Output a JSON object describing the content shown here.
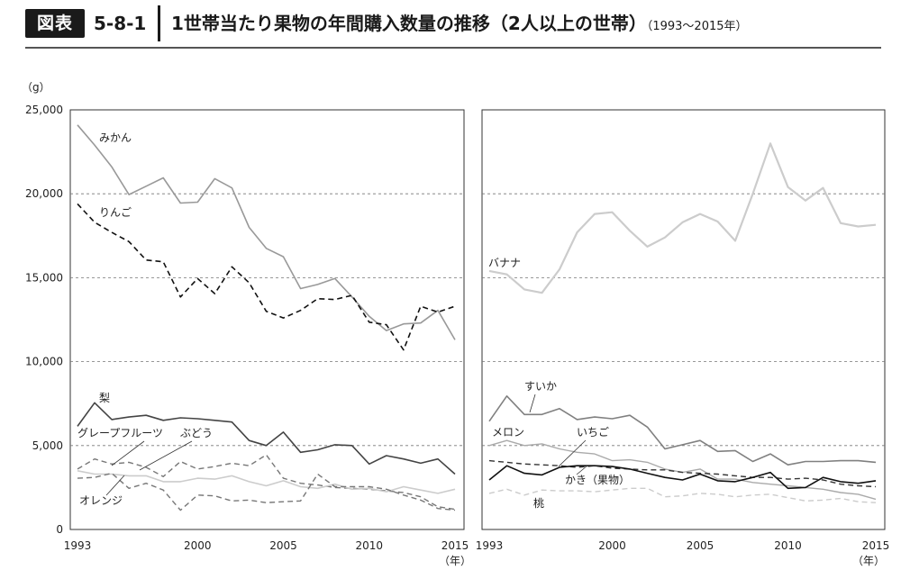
{
  "header": {
    "badge": "図表",
    "fig_number": "5-8-1",
    "title": "1世帯当たり果物の年間購入数量の推移（2人以上の世帯）",
    "subtitle": "（1993～2015年）"
  },
  "chart_data": {
    "type": "line",
    "unit_label": "（g）",
    "x_end_label": "（年）",
    "x": [
      1993,
      1994,
      1995,
      1996,
      1997,
      1998,
      1999,
      2000,
      2001,
      2002,
      2003,
      2004,
      2005,
      2006,
      2007,
      2008,
      2009,
      2010,
      2011,
      2012,
      2013,
      2014,
      2015
    ],
    "x_ticks": [
      1993,
      2000,
      2005,
      2010,
      2015
    ],
    "ylim": [
      0,
      25000
    ],
    "y_ticks": [
      0,
      5000,
      10000,
      15000,
      20000,
      25000
    ],
    "y_tick_labels": [
      "0",
      "5,000",
      "10,000",
      "15,000",
      "20,000",
      "25,000"
    ],
    "grid": "dashed at 5,000 intervals",
    "panels": [
      {
        "series": [
          {
            "name": "みかん",
            "color": "#999999",
            "dash": "solid",
            "width": 1.6,
            "values": [
              24100,
              22900,
              21600,
              19950,
              20450,
              20950,
              19450,
              19500,
              20900,
              20350,
              18000,
              16750,
              16250,
              14350,
              14600,
              14950,
              13850,
              12700,
              11850,
              12250,
              12300,
              13050,
              11300
            ]
          },
          {
            "name": "りんご",
            "color": "#111111",
            "dash": "dashed",
            "width": 1.6,
            "values": [
              19400,
              18300,
              17700,
              17150,
              16050,
              15950,
              13850,
              14950,
              14050,
              15650,
              14700,
              13000,
              12600,
              13050,
              13750,
              13700,
              13950,
              12350,
              12200,
              10700,
              13300,
              12950,
              13300
            ]
          },
          {
            "name": "梨",
            "color": "#444444",
            "dash": "solid",
            "width": 1.6,
            "values": [
              6150,
              7550,
              6550,
              6700,
              6800,
              6500,
              6650,
              6600,
              6500,
              6400,
              5300,
              5000,
              5800,
              4600,
              4750,
              5050,
              5000,
              3900,
              4400,
              4200,
              3950,
              4200,
              3300
            ]
          },
          {
            "name": "グレープフルーツ",
            "color": "#777777",
            "dash": "dashed",
            "width": 1.4,
            "values": [
              3600,
              4200,
              3900,
              4000,
              3700,
              3150,
              4050,
              3600,
              3750,
              3950,
              3800,
              4450,
              3050,
              2750,
              2650,
              2500,
              2450,
              2400,
              2300,
              2200,
              1950,
              1350,
              1200
            ]
          },
          {
            "name": "ぶどう",
            "color": "#cccccc",
            "dash": "solid",
            "width": 1.6,
            "values": [
              3500,
              3300,
              3300,
              3200,
              3200,
              2850,
              2850,
              3050,
              3000,
              3200,
              2850,
              2600,
              2900,
              2550,
              2450,
              2700,
              2400,
              2450,
              2250,
              2550,
              2350,
              2150,
              2400
            ]
          },
          {
            "name": "オレンジ",
            "color": "#777777",
            "dash": "dashed",
            "width": 1.4,
            "values": [
              3050,
              3100,
              3350,
              2450,
              2750,
              2350,
              1150,
              2050,
              2000,
              1700,
              1750,
              1600,
              1650,
              1700,
              3300,
              2550,
              2550,
              2550,
              2400,
              2050,
              1750,
              1250,
              1150
            ]
          }
        ]
      },
      {
        "series": [
          {
            "name": "バナナ",
            "color": "#cccccc",
            "dash": "solid",
            "width": 2.2,
            "values": [
              15400,
              15200,
              14300,
              14100,
              15500,
              17700,
              18800,
              18900,
              17800,
              16850,
              17400,
              18300,
              18800,
              18350,
              17200,
              20000,
              23000,
              20400,
              19600,
              20350,
              18250,
              18050,
              18150
            ]
          },
          {
            "name": "すいか",
            "color": "#808080",
            "dash": "solid",
            "width": 1.6,
            "values": [
              6450,
              7950,
              6850,
              6850,
              7200,
              6550,
              6700,
              6600,
              6800,
              6100,
              4800,
              5050,
              5300,
              4650,
              4700,
              4050,
              4500,
              3850,
              4050,
              4050,
              4100,
              4100,
              4000
            ]
          },
          {
            "name": "メロン",
            "color": "#aaaaaa",
            "dash": "solid",
            "width": 1.4,
            "values": [
              5000,
              5300,
              5000,
              5100,
              4800,
              4600,
              4500,
              4100,
              4150,
              4000,
              3600,
              3400,
              3600,
              3000,
              3000,
              2800,
              2700,
              2600,
              2500,
              2400,
              2200,
              2100,
              1800
            ]
          },
          {
            "name": "いちご",
            "color": "#333333",
            "dash": "dashed",
            "width": 1.4,
            "values": [
              4100,
              4000,
              3900,
              3850,
              3800,
              3700,
              3800,
              3650,
              3600,
              3550,
              3550,
              3400,
              3350,
              3300,
              3200,
              3100,
              3100,
              3000,
              3050,
              2950,
              2700,
              2600,
              2550
            ]
          },
          {
            "name": "かき（果物）",
            "color": "#111111",
            "dash": "solid",
            "width": 1.6,
            "values": [
              2950,
              3800,
              3350,
              3250,
              3700,
              3800,
              3800,
              3750,
              3600,
              3350,
              3100,
              2950,
              3300,
              2900,
              2850,
              3100,
              3400,
              2450,
              2500,
              3100,
              2850,
              2750,
              2900
            ]
          },
          {
            "name": "桃",
            "color": "#cccccc",
            "dash": "dashed",
            "width": 1.4,
            "values": [
              2150,
              2400,
              2050,
              2350,
              2300,
              2300,
              2250,
              2350,
              2450,
              2450,
              1950,
              2000,
              2150,
              2100,
              1950,
              2050,
              2100,
              1900,
              1700,
              1750,
              1850,
              1650,
              1600
            ]
          }
        ]
      }
    ]
  }
}
